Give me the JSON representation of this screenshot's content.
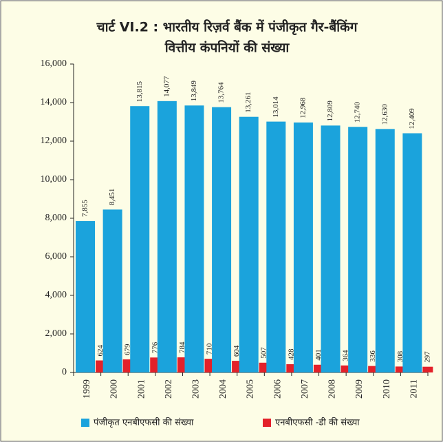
{
  "chart_data": {
    "type": "bar",
    "title": [
      "चार्ट VI.2 : भारतीय रिज़र्व बैंक में पंजीकृत गैर-बैंकिंग",
      "वित्तीय कंपनियों की संख्या"
    ],
    "categories": [
      "1999",
      "2000",
      "2001",
      "2002",
      "2003",
      "2004",
      "2005",
      "2006",
      "2007",
      "2008",
      "2009",
      "2010",
      "2011"
    ],
    "series": [
      {
        "name": "पंजीकृत एनबीएफसी की संख्या",
        "color": "#1ba3dc",
        "values": [
          7855,
          8451,
          13815,
          14077,
          13849,
          13764,
          13261,
          13014,
          12968,
          12809,
          12740,
          12630,
          12409
        ],
        "value_labels": [
          "7,855",
          "8,451",
          "13,815",
          "14,077",
          "13,849",
          "13,764",
          "13,261",
          "13,014",
          "12,968",
          "12,809",
          "12,740",
          "12,630",
          "12,409"
        ]
      },
      {
        "name": "एनबीएफसी -डी की संख्या",
        "color": "#e3212a",
        "values": [
          624,
          679,
          776,
          784,
          710,
          604,
          507,
          428,
          401,
          364,
          336,
          308,
          297
        ]
      }
    ],
    "ylim": [
      0,
      16000
    ],
    "yticks": [
      0,
      {
        "value": 2000,
        "label": "2,000"
      },
      {
        "value": 4000,
        "label": "4,000"
      },
      {
        "value": 6000,
        "label": "6,000"
      },
      {
        "value": 8000,
        "label": "8,000"
      },
      {
        "value": 10000,
        "label": "10,000"
      },
      {
        "value": 12000,
        "label": "12,000"
      },
      {
        "value": 14000,
        "label": "14,000"
      },
      {
        "value": 16000,
        "label": "16,000"
      }
    ]
  }
}
